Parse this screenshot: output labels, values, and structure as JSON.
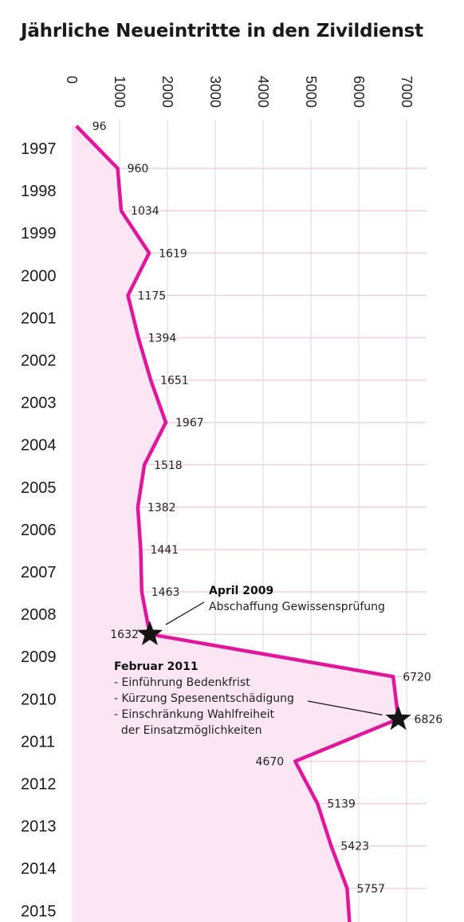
{
  "chart_data": {
    "type": "line",
    "title": "Jährliche Neueintritte in den Zivildienst",
    "xlim": [
      0,
      7000
    ],
    "x_ticks": [
      "0",
      "1000",
      "2000",
      "3000",
      "4000",
      "5000",
      "6000",
      "7000"
    ],
    "year_labels": [
      "1997",
      "1998",
      "1999",
      "2000",
      "2001",
      "2002",
      "2003",
      "2004",
      "2005",
      "2006",
      "2007",
      "2008",
      "2009",
      "2010",
      "2011",
      "2012",
      "2013",
      "2014",
      "2015"
    ],
    "values": [
      96,
      960,
      1034,
      1619,
      1175,
      1394,
      1651,
      1967,
      1518,
      1382,
      1441,
      1463,
      1632,
      6720,
      6826,
      4670,
      5139,
      5423,
      5757
    ],
    "value_labels": [
      "96",
      "960",
      "1034",
      "1619",
      "1175",
      "1394",
      "1651",
      "1967",
      "1518",
      "1382",
      "1441",
      "1463",
      "1632",
      "6720",
      "6826",
      "4670",
      "5139",
      "5423",
      "5757"
    ],
    "grid": true,
    "line_color": "#e0179b",
    "fill_color": "#fde6f4",
    "annotations": [
      {
        "at_index": 12,
        "title": "April 2009",
        "lines": [
          "Abschaffung Gewissensprüfung"
        ]
      },
      {
        "at_index": 14,
        "title": "Februar 2011",
        "lines": [
          "- Einführung Bedenkfrist",
          "- Kürzung Spesenentschädigung",
          "- Einschränkung Wahlfreiheit",
          "  der Einsatzmöglichkeiten"
        ]
      }
    ]
  }
}
